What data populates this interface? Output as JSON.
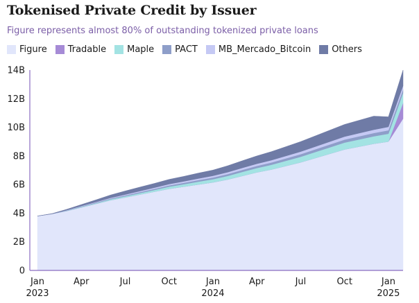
{
  "chart_data": {
    "type": "area",
    "title": "Tokenised Private Credit by Issuer",
    "subtitle": "Figure represents almost 80% of outstanding tokenized private loans",
    "stacked": true,
    "legend_position": "top-left",
    "grid": false,
    "x": [
      "2023-01",
      "2023-02",
      "2023-03",
      "2023-04",
      "2023-05",
      "2023-06",
      "2023-07",
      "2023-08",
      "2023-09",
      "2023-10",
      "2023-11",
      "2023-12",
      "2024-01",
      "2024-02",
      "2024-03",
      "2024-04",
      "2024-05",
      "2024-06",
      "2024-07",
      "2024-08",
      "2024-09",
      "2024-10",
      "2024-11",
      "2024-12",
      "2025-01",
      "2025-02"
    ],
    "x_tick_labels": [
      {
        "month": "2023-01",
        "line1": "Jan",
        "line2": "2023"
      },
      {
        "month": "2023-04",
        "line1": "Apr",
        "line2": ""
      },
      {
        "month": "2023-07",
        "line1": "Jul",
        "line2": ""
      },
      {
        "month": "2023-10",
        "line1": "Oct",
        "line2": ""
      },
      {
        "month": "2024-01",
        "line1": "Jan",
        "line2": "2024"
      },
      {
        "month": "2024-04",
        "line1": "Apr",
        "line2": ""
      },
      {
        "month": "2024-07",
        "line1": "Jul",
        "line2": ""
      },
      {
        "month": "2024-10",
        "line1": "Oct",
        "line2": ""
      },
      {
        "month": "2025-01",
        "line1": "Jan",
        "line2": "2025"
      }
    ],
    "yticks": [
      {
        "value": 0,
        "label": "0"
      },
      {
        "value": 2,
        "label": "2B"
      },
      {
        "value": 4,
        "label": "4B"
      },
      {
        "value": 6,
        "label": "6B"
      },
      {
        "value": 8,
        "label": "8B"
      },
      {
        "value": 10,
        "label": "10B"
      },
      {
        "value": 12,
        "label": "12B"
      },
      {
        "value": 14,
        "label": "14B"
      }
    ],
    "ylim": [
      0,
      14
    ],
    "series": [
      {
        "name": "Figure",
        "color": "#e1e6fb",
        "values": [
          3.8,
          3.95,
          4.15,
          4.4,
          4.65,
          4.9,
          5.1,
          5.3,
          5.5,
          5.7,
          5.85,
          6.0,
          6.15,
          6.35,
          6.6,
          6.85,
          7.05,
          7.3,
          7.55,
          7.85,
          8.15,
          8.45,
          8.65,
          8.85,
          9.0,
          10.6
        ]
      },
      {
        "name": "Tradable",
        "color": "#a68bd6",
        "values": [
          0,
          0,
          0,
          0,
          0,
          0,
          0,
          0,
          0,
          0,
          0,
          0,
          0,
          0,
          0,
          0,
          0,
          0,
          0,
          0,
          0,
          0,
          0,
          0,
          0,
          1.1
        ]
      },
      {
        "name": "Maple",
        "color": "#a3e3e3",
        "values": [
          0,
          0,
          0.02,
          0.04,
          0.05,
          0.07,
          0.08,
          0.1,
          0.12,
          0.15,
          0.17,
          0.2,
          0.22,
          0.25,
          0.28,
          0.3,
          0.33,
          0.36,
          0.39,
          0.42,
          0.45,
          0.48,
          0.5,
          0.52,
          0.55,
          0.7
        ]
      },
      {
        "name": "PACT",
        "color": "#8e9ec9",
        "values": [
          0,
          0,
          0.02,
          0.03,
          0.04,
          0.05,
          0.06,
          0.07,
          0.08,
          0.09,
          0.1,
          0.11,
          0.12,
          0.13,
          0.14,
          0.15,
          0.16,
          0.17,
          0.18,
          0.19,
          0.2,
          0.21,
          0.22,
          0.23,
          0.24,
          0.25
        ]
      },
      {
        "name": "MB_Mercado_Bitcoin",
        "color": "#c5c9f4",
        "values": [
          0,
          0,
          0.02,
          0.03,
          0.04,
          0.05,
          0.06,
          0.07,
          0.08,
          0.09,
          0.1,
          0.11,
          0.12,
          0.13,
          0.14,
          0.15,
          0.16,
          0.17,
          0.18,
          0.19,
          0.2,
          0.21,
          0.22,
          0.23,
          0.24,
          0.25
        ]
      },
      {
        "name": "Others",
        "color": "#6f7ba6",
        "values": [
          0,
          0.02,
          0.06,
          0.1,
          0.15,
          0.2,
          0.25,
          0.28,
          0.3,
          0.33,
          0.35,
          0.38,
          0.4,
          0.45,
          0.5,
          0.55,
          0.6,
          0.65,
          0.7,
          0.75,
          0.8,
          0.85,
          0.9,
          0.95,
          0.7,
          1.1
        ]
      }
    ]
  }
}
